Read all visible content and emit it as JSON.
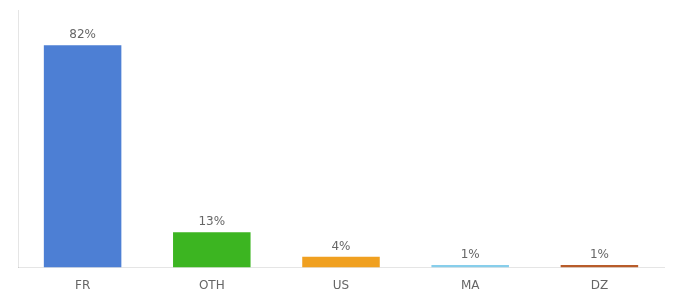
{
  "chart_data": {
    "type": "bar",
    "categories": [
      "FR",
      "OTH",
      "US",
      "MA",
      "DZ"
    ],
    "values": [
      82,
      13,
      4,
      1,
      1
    ],
    "value_labels": [
      "82%",
      "13%",
      "4%",
      "1%",
      "1%"
    ],
    "colors": [
      "#4d7fd4",
      "#3cb521",
      "#f0a020",
      "#87ceeb",
      "#b85c2a"
    ],
    "ylim": [
      0,
      95
    ],
    "grid": false,
    "data_labels": true,
    "tick_labels": "x"
  }
}
